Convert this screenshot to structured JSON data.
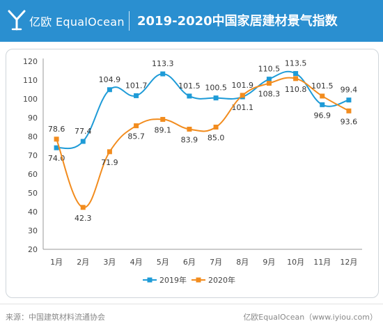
{
  "header": {
    "brand_cn": "亿欧",
    "brand_en": "EqualOcean",
    "title": "2019-2020中国家居建材景气指数"
  },
  "footer": {
    "source": "来源：中国建筑材料流通协会",
    "credit": "亿欧EqualOcean（www.iyiou.com）"
  },
  "chart_data": {
    "type": "line",
    "categories": [
      "1月",
      "2月",
      "3月",
      "4月",
      "5月",
      "6月",
      "7月",
      "8月",
      "9月",
      "10月",
      "11月",
      "12月"
    ],
    "ylim": [
      20,
      120
    ],
    "yticks": [
      20,
      30,
      40,
      50,
      60,
      70,
      80,
      90,
      100,
      110,
      120
    ],
    "grid": false,
    "legend_position": "bottom",
    "series": [
      {
        "name": "2019年",
        "color": "#1e9bd7",
        "values": [
          74.0,
          77.4,
          104.9,
          101.7,
          113.3,
          101.5,
          100.5,
          101.1,
          110.5,
          113.5,
          96.9,
          99.4
        ],
        "labels": [
          "74.0",
          "77.4",
          "104.9",
          "101.7",
          "113.3",
          "101.5",
          "100.5",
          "101.1",
          "110.5",
          "113.5",
          "96.9",
          "99.4"
        ]
      },
      {
        "name": "2020年",
        "color": "#f28c1e",
        "values": [
          78.6,
          42.3,
          71.9,
          85.7,
          89.1,
          83.9,
          85.0,
          101.9,
          108.3,
          110.8,
          101.5,
          93.6
        ],
        "labels": [
          "78.6",
          "42.3",
          "71.9",
          "85.7",
          "89.1",
          "83.9",
          "85.0",
          "101.9",
          "108.3",
          "110.8",
          "101.5",
          "93.6"
        ]
      }
    ]
  }
}
